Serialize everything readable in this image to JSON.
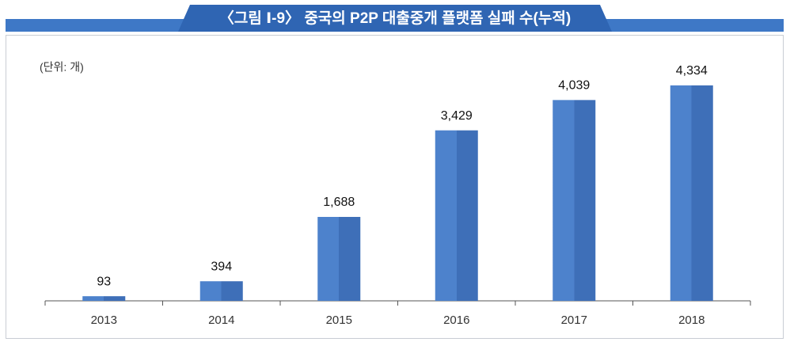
{
  "chart_data": {
    "type": "bar",
    "title": "〈그림 Ⅰ-9〉 중국의 P2P 대출중개 플랫폼 실패 수(누적)",
    "unit_label": "(단위: 개)",
    "categories": [
      "2013",
      "2014",
      "2015",
      "2016",
      "2017",
      "2018"
    ],
    "values": [
      93,
      394,
      1688,
      3429,
      4039,
      4334
    ],
    "value_labels": [
      "93",
      "394",
      "1,688",
      "3,429",
      "4,039",
      "4,334"
    ],
    "color": "#4277c2",
    "ylim": [
      0,
      5000
    ]
  }
}
